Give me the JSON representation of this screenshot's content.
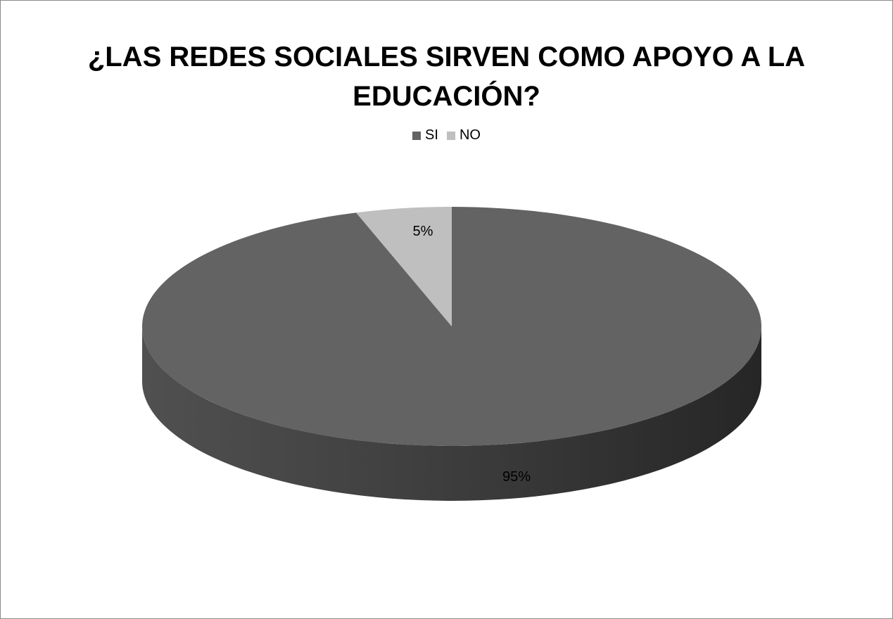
{
  "chart_data": {
    "type": "pie",
    "title": "¿LAS REDES SOCIALES SIRVEN COMO APOYO A LA EDUCACIÓN?",
    "categories": [
      "SI",
      "NO"
    ],
    "values": [
      95,
      5
    ],
    "data_labels": [
      "95%",
      "5%"
    ],
    "colors": [
      "#636363",
      "#bfbfbf"
    ],
    "side_colors": [
      "#3a3a3a",
      "#8c8c8c"
    ],
    "legend_position": "top",
    "style": "3d-pie"
  }
}
